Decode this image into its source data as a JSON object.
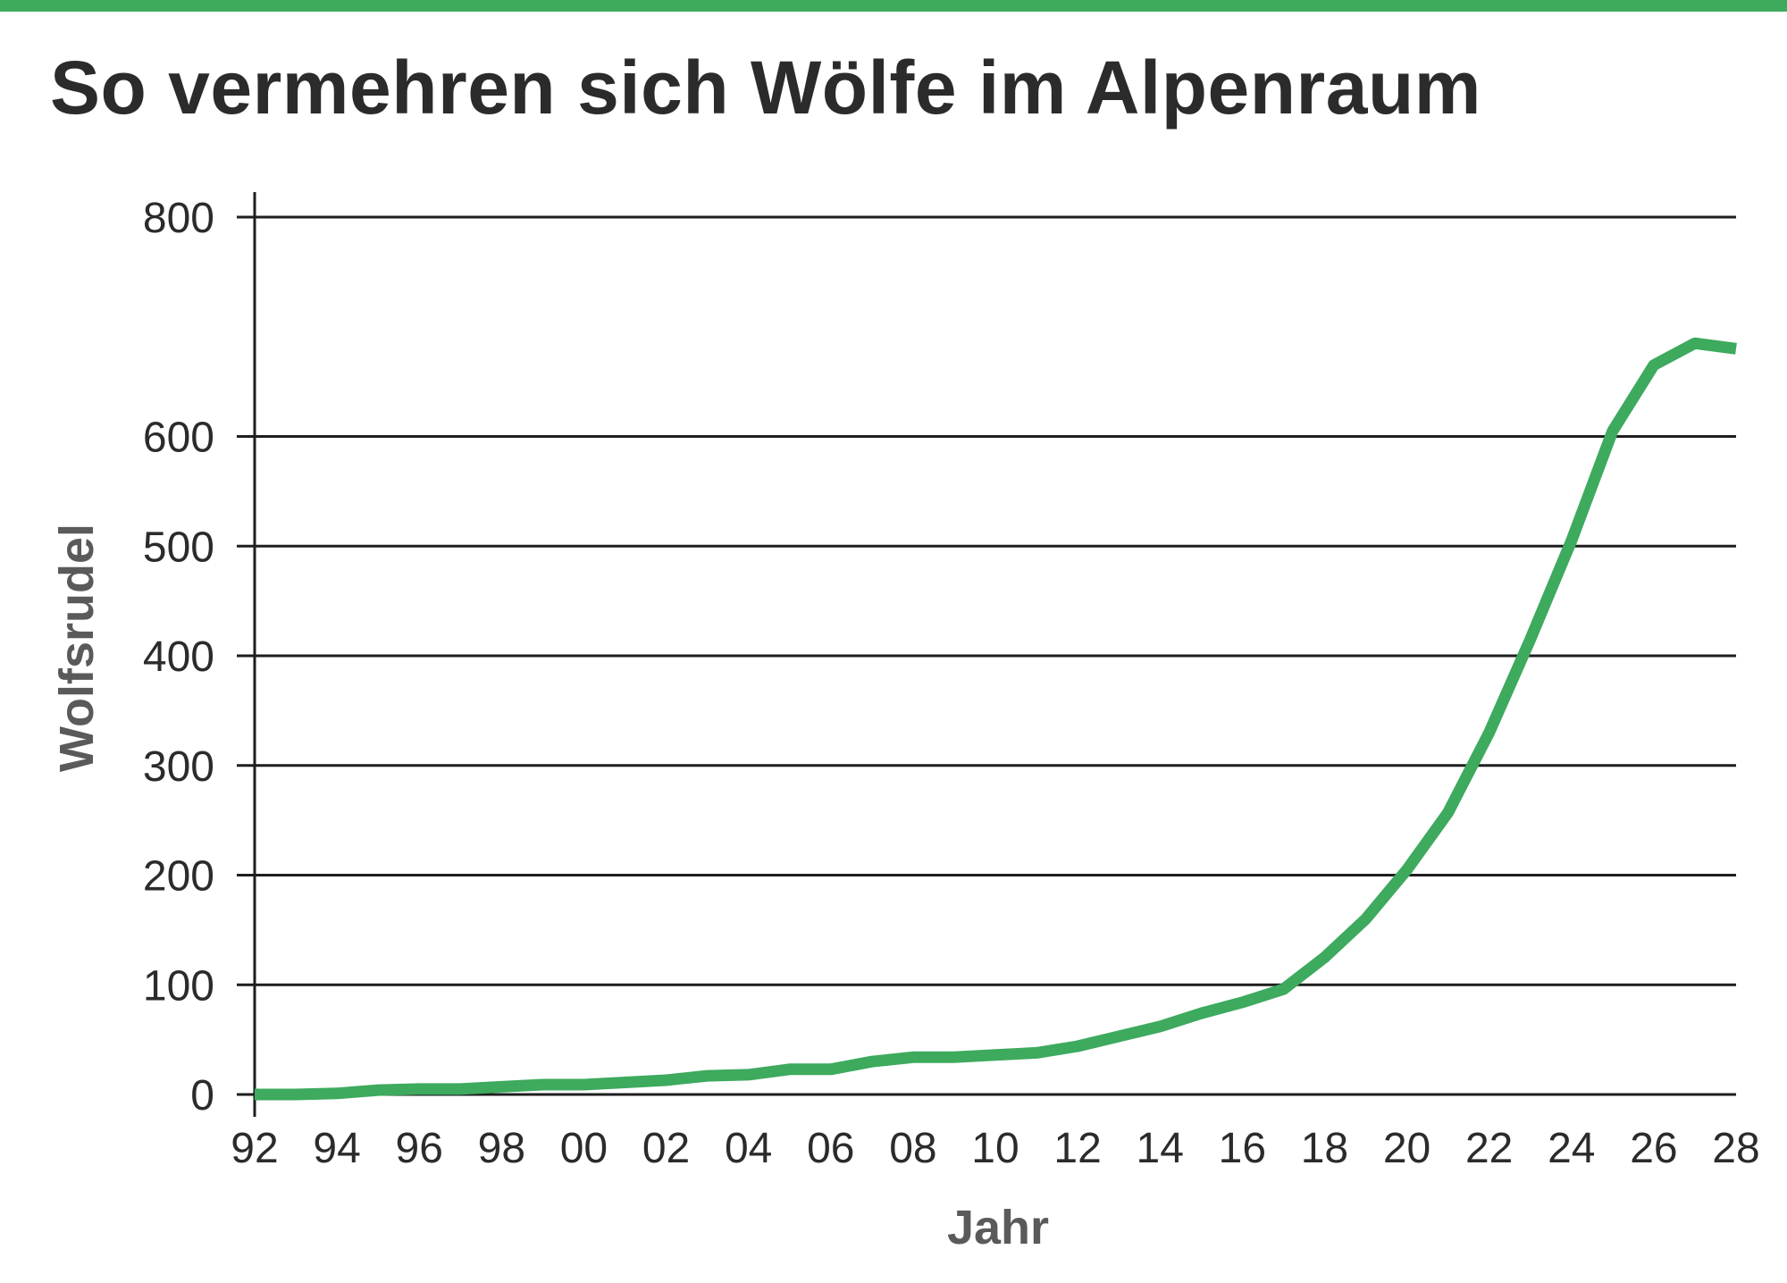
{
  "colors": {
    "accent": "#3daa5e",
    "gridline": "#1e1e1e",
    "text": "#2b2b2b",
    "axis_title": "#5a5a5a"
  },
  "chart_data": {
    "type": "line",
    "title": "So vermehren sich Wölfe im Alpenraum",
    "xlabel": "Jahr",
    "ylabel": "Wolfsrudel",
    "xlim": [
      1992,
      2028
    ],
    "ylim": [
      0,
      800
    ],
    "grid": true,
    "x_ticks": [
      1992,
      1994,
      1996,
      1998,
      2000,
      2002,
      2004,
      2006,
      2008,
      2010,
      2012,
      2014,
      2016,
      2018,
      2020,
      2022,
      2024,
      2026,
      2028
    ],
    "x_tick_labels": [
      "92",
      "94",
      "96",
      "98",
      "00",
      "02",
      "04",
      "06",
      "08",
      "10",
      "12",
      "14",
      "16",
      "18",
      "20",
      "22",
      "24",
      "26",
      "28"
    ],
    "y_ticks": [
      0,
      100,
      200,
      300,
      400,
      500,
      600,
      800
    ],
    "y_tick_labels": [
      "0",
      "100",
      "200",
      "300",
      "400",
      "500",
      "600",
      "800"
    ],
    "series": [
      {
        "x": [
          1992,
          1993,
          1994,
          1995,
          1996,
          1997,
          1998,
          1999,
          2000,
          2001,
          2002,
          2003,
          2004,
          2005,
          2006,
          2007,
          2008,
          2009,
          2010,
          2011,
          2012,
          2013,
          2014,
          2015,
          2016,
          2017,
          2018,
          2019,
          2020,
          2021,
          2022,
          2023,
          2024,
          2025,
          2026,
          2027,
          2028
        ],
        "values": [
          0,
          0,
          1,
          4,
          5,
          5,
          7,
          9,
          9,
          11,
          13,
          17,
          18,
          23,
          23,
          30,
          34,
          34,
          36,
          38,
          44,
          53,
          62,
          74,
          84,
          96,
          125,
          160,
          205,
          257,
          330,
          415,
          505,
          605,
          665,
          685,
          680
        ]
      }
    ]
  }
}
